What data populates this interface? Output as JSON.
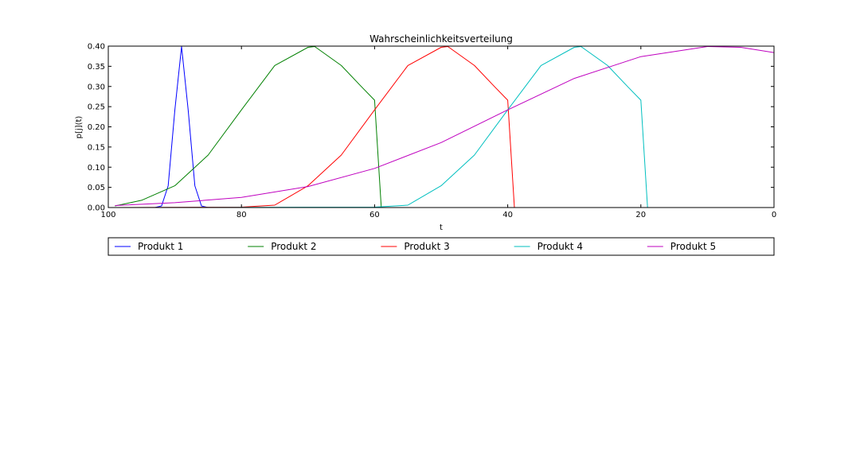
{
  "chart_data": {
    "type": "line",
    "title": "Wahrscheinlichkeitsverteilung",
    "xlabel": "t",
    "ylabel": "p[j](t)",
    "xlim": [
      100,
      0
    ],
    "ylim": [
      0,
      0.4
    ],
    "x_ticks": [
      100,
      80,
      60,
      40,
      20,
      0
    ],
    "x_tick_labels": [
      "100",
      "80",
      "60",
      "40",
      "20",
      "0"
    ],
    "y_ticks": [
      0,
      0.05,
      0.1,
      0.15,
      0.2,
      0.25,
      0.3,
      0.35,
      0.4
    ],
    "y_tick_labels": [
      "0.00",
      "0.05",
      "0.10",
      "0.15",
      "0.20",
      "0.25",
      "0.30",
      "0.35",
      "0.40"
    ],
    "grid": false,
    "legend_position": "below",
    "series": [
      {
        "name": "Produkt 1",
        "color": "#0000ff",
        "x": [
          99,
          93,
          92,
          91,
          90,
          89,
          88,
          87,
          86,
          85,
          84,
          83,
          0
        ],
        "y": [
          0.0,
          0.0,
          0.004,
          0.054,
          0.242,
          0.399,
          0.242,
          0.054,
          0.004,
          0.0,
          0.0,
          0.0,
          0.0
        ]
      },
      {
        "name": "Produkt 2",
        "color": "#008000",
        "x": [
          99,
          95,
          90,
          85,
          80,
          75,
          70,
          69,
          65,
          62,
          60,
          59,
          58,
          0
        ],
        "y": [
          0.004,
          0.018,
          0.054,
          0.13,
          0.242,
          0.352,
          0.397,
          0.399,
          0.352,
          0.3,
          0.266,
          0.0,
          0.0,
          0.0
        ]
      },
      {
        "name": "Produkt 3",
        "color": "#ff0000",
        "x": [
          99,
          80,
          75,
          70,
          65,
          60,
          55,
          50,
          49,
          45,
          42,
          40,
          39,
          38,
          0
        ],
        "y": [
          0.0,
          0.001,
          0.006,
          0.054,
          0.13,
          0.242,
          0.352,
          0.397,
          0.399,
          0.352,
          0.3,
          0.266,
          0.0,
          0.0,
          0.0
        ]
      },
      {
        "name": "Produkt 4",
        "color": "#00bfbf",
        "x": [
          99,
          60,
          55,
          50,
          45,
          40,
          35,
          30,
          29,
          25,
          22,
          20,
          19,
          18,
          0
        ],
        "y": [
          0.0,
          0.001,
          0.006,
          0.054,
          0.13,
          0.242,
          0.352,
          0.397,
          0.399,
          0.352,
          0.3,
          0.266,
          0.0,
          0.0,
          0.0
        ]
      },
      {
        "name": "Produkt 5",
        "color": "#bf00bf",
        "x": [
          99,
          90,
          80,
          70,
          60,
          50,
          40,
          30,
          20,
          10,
          5,
          0
        ],
        "y": [
          0.005,
          0.012,
          0.025,
          0.052,
          0.097,
          0.161,
          0.242,
          0.32,
          0.374,
          0.399,
          0.397,
          0.384
        ]
      }
    ]
  }
}
